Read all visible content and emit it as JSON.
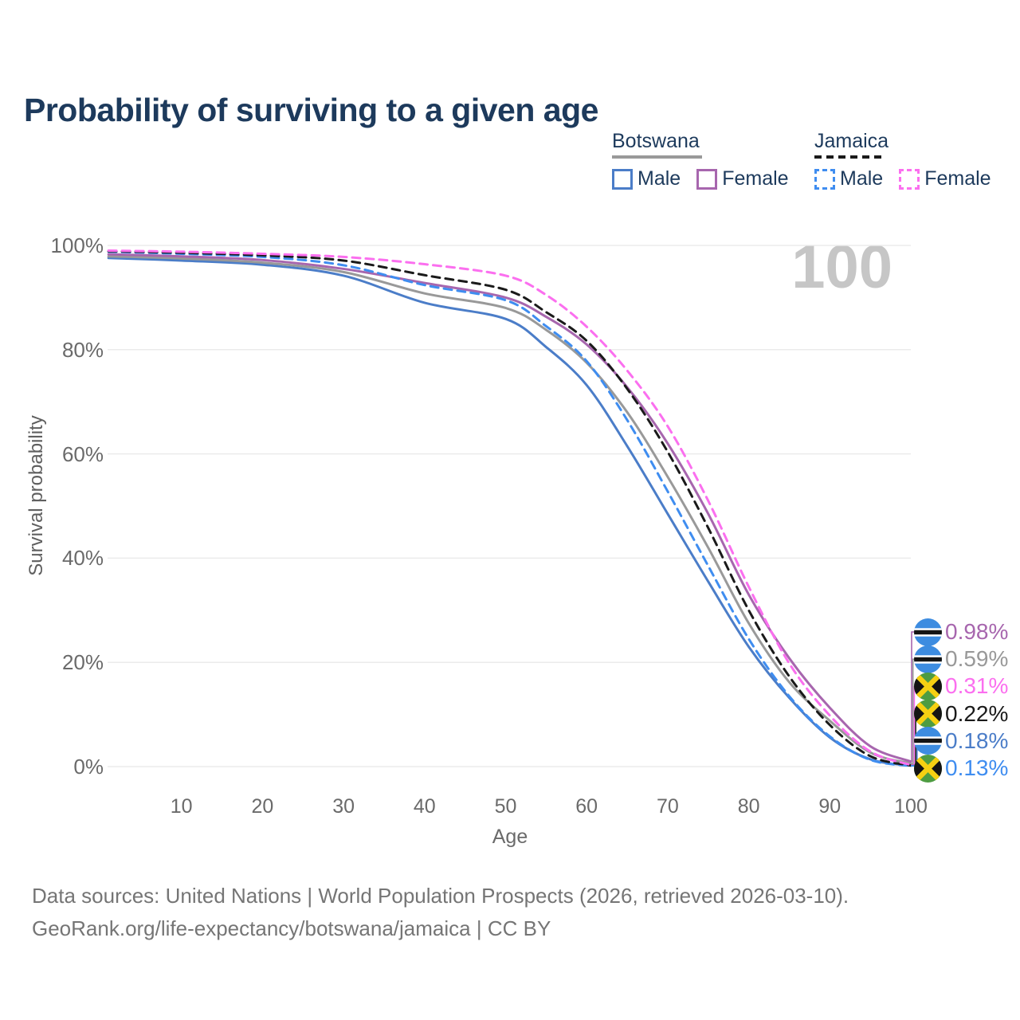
{
  "title": "Probability of surviving to a given age",
  "watermark_age": "100",
  "legend": {
    "groups": [
      {
        "country": "Botswana",
        "line_style": "solid",
        "color": "#999999",
        "items": [
          {
            "label": "Male",
            "color": "#4B7DC8",
            "dashed": false
          },
          {
            "label": "Female",
            "color": "#A766AE",
            "dashed": false
          }
        ]
      },
      {
        "country": "Jamaica",
        "line_style": "dashed",
        "color": "#1A1A1A",
        "items": [
          {
            "label": "Male",
            "color": "#3F8DF0",
            "dashed": true
          },
          {
            "label": "Female",
            "color": "#FB6FEF",
            "dashed": true
          }
        ]
      }
    ]
  },
  "chart_data": {
    "type": "line",
    "title": "Probability of surviving to a given age",
    "xlabel": "Age",
    "ylabel": "Survival probability",
    "xlim": [
      0,
      100
    ],
    "ylim": [
      0,
      100
    ],
    "grid": "horizontal",
    "legend_position": "top-right",
    "x_ticks": [
      10,
      20,
      30,
      40,
      50,
      60,
      70,
      80,
      90,
      100
    ],
    "y_ticks": [
      {
        "label": "0%",
        "value": 0
      },
      {
        "label": "20%",
        "value": 20
      },
      {
        "label": "40%",
        "value": 40
      },
      {
        "label": "60%",
        "value": 60
      },
      {
        "label": "80%",
        "value": 80
      },
      {
        "label": "100%",
        "value": 100
      }
    ],
    "ages": [
      1,
      10,
      20,
      30,
      40,
      50,
      55,
      60,
      65,
      70,
      75,
      80,
      85,
      90,
      95,
      100
    ],
    "series": [
      {
        "name": "Botswana Male",
        "country": "Botswana",
        "sex": "Male",
        "color": "#4B7DC8",
        "dashed": false,
        "end_label": "0.18%",
        "values": [
          97.6,
          97.1,
          96.3,
          94.2,
          89.0,
          85.9,
          80.5,
          73.2,
          61.5,
          48.5,
          35.5,
          23.0,
          13.2,
          5.6,
          1.4,
          0.18
        ]
      },
      {
        "name": "Botswana (both sexes)",
        "country": "Botswana",
        "sex": "Both",
        "color": "#999999",
        "dashed": false,
        "end_label": "0.59%",
        "values": [
          97.9,
          97.5,
          96.7,
          94.9,
          90.8,
          88.0,
          83.8,
          77.5,
          68.0,
          55.6,
          42.0,
          27.5,
          16.2,
          8.8,
          2.7,
          0.59
        ]
      },
      {
        "name": "Botswana Female",
        "country": "Botswana",
        "sex": "Female",
        "color": "#A766AE",
        "dashed": false,
        "end_label": "0.98%",
        "values": [
          98.3,
          97.9,
          97.2,
          95.5,
          92.8,
          90.0,
          86.3,
          81.0,
          72.8,
          62.0,
          48.5,
          33.0,
          20.8,
          11.3,
          3.9,
          0.98
        ]
      },
      {
        "name": "Jamaica Male",
        "country": "Jamaica",
        "sex": "Male",
        "color": "#3F8DF0",
        "dashed": true,
        "end_label": "0.13%",
        "values": [
          98.8,
          98.4,
          97.8,
          96.2,
          92.4,
          89.5,
          84.5,
          77.8,
          66.5,
          52.8,
          38.5,
          24.5,
          13.5,
          5.8,
          1.3,
          0.13
        ]
      },
      {
        "name": "Jamaica (both sexes)",
        "country": "Jamaica",
        "sex": "Both",
        "color": "#1A1A1A",
        "dashed": true,
        "end_label": "0.22%",
        "values": [
          98.9,
          98.6,
          98.1,
          97.1,
          94.3,
          91.5,
          87.2,
          81.7,
          72.5,
          60.4,
          45.8,
          30.0,
          17.3,
          8.0,
          2.0,
          0.22
        ]
      },
      {
        "name": "Jamaica Female",
        "country": "Jamaica",
        "sex": "Female",
        "color": "#FB6FEF",
        "dashed": true,
        "end_label": "0.31%",
        "values": [
          99.0,
          98.8,
          98.4,
          97.8,
          96.4,
          94.2,
          90.5,
          84.4,
          76.0,
          65.3,
          51.0,
          34.5,
          19.8,
          9.8,
          2.9,
          0.31
        ]
      }
    ],
    "end_labels": [
      {
        "value": "0.98%",
        "series": "Botswana Female",
        "flag": "botswana",
        "color": "#A766AE"
      },
      {
        "value": "0.59%",
        "series": "Botswana (both sexes)",
        "flag": "botswana",
        "color": "#999999"
      },
      {
        "value": "0.31%",
        "series": "Jamaica Female",
        "flag": "jamaica",
        "color": "#FB6FEF"
      },
      {
        "value": "0.22%",
        "series": "Jamaica (both sexes)",
        "flag": "jamaica",
        "color": "#1A1A1A"
      },
      {
        "value": "0.18%",
        "series": "Botswana Male",
        "flag": "botswana",
        "color": "#4B7DC8"
      },
      {
        "value": "0.13%",
        "series": "Jamaica Male",
        "flag": "jamaica",
        "color": "#3F8DF0"
      }
    ]
  },
  "footer": {
    "line1": "Data sources: United Nations | World Population Prospects (2026, retrieved 2026-03-10).",
    "line2": "GeoRank.org/life-expectancy/botswana/jamaica | CC BY"
  }
}
